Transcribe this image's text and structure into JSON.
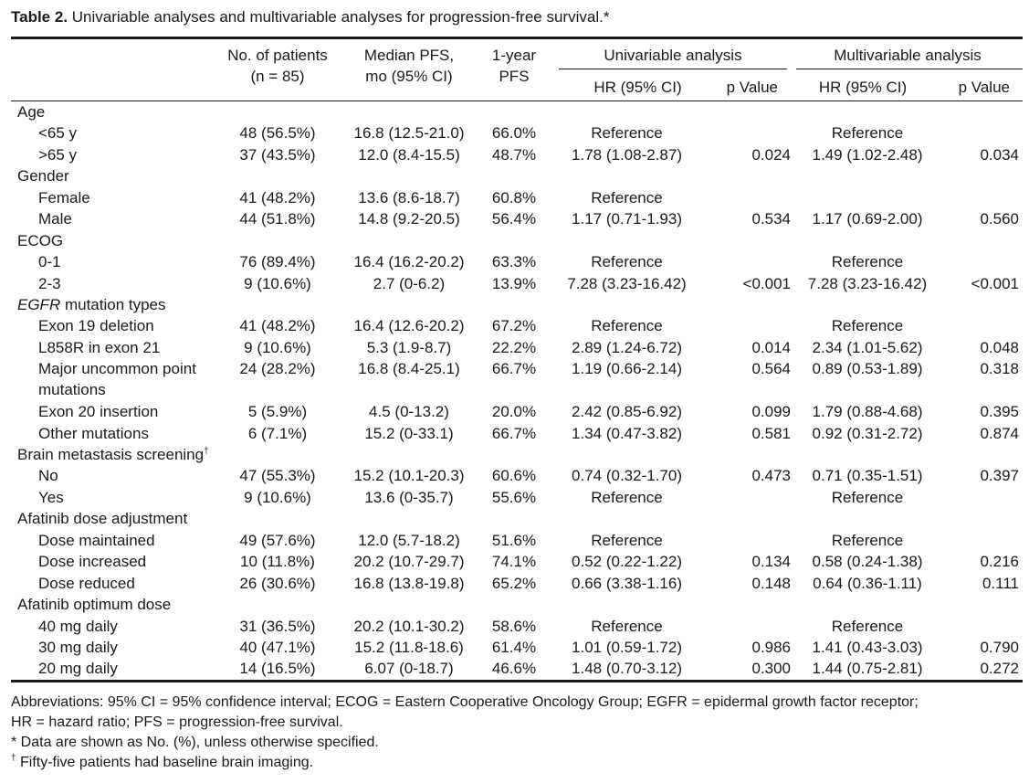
{
  "caption": {
    "label": "Table 2.",
    "text": " Univariable analyses and multivariable analyses for progression-free survival.*"
  },
  "headers": {
    "patients": [
      "No. of patients",
      "(n = 85)"
    ],
    "median": [
      "Median PFS,",
      "mo (95% CI)"
    ],
    "year": [
      "1-year",
      "PFS"
    ],
    "univariable": "Univariable analysis",
    "multivariable": "Multivariable analysis",
    "hr": "HR (95% CI)",
    "p": "p Value"
  },
  "rows": [
    {
      "type": "section",
      "label": "Age"
    },
    {
      "type": "row",
      "label": "<65 y",
      "n": "48 (56.5%)",
      "median": "16.8 (12.5-21.0)",
      "year": "66.0%",
      "uhr": "Reference",
      "up": "",
      "mhr": "Reference",
      "mp": ""
    },
    {
      "type": "row",
      "label": ">65 y",
      "n": "37 (43.5%)",
      "median": "12.0 (8.4-15.5)",
      "year": "48.7%",
      "uhr": "1.78 (1.08-2.87)",
      "up": "0.024",
      "mhr": "1.49 (1.02-2.48)",
      "mp": "0.034"
    },
    {
      "type": "section",
      "label": "Gender"
    },
    {
      "type": "row",
      "label": "Female",
      "n": "41 (48.2%)",
      "median": "13.6 (8.6-18.7)",
      "year": "60.8%",
      "uhr": "Reference",
      "up": "",
      "mhr": "",
      "mp": ""
    },
    {
      "type": "row",
      "label": "Male",
      "n": "44 (51.8%)",
      "median": "14.8 (9.2-20.5)",
      "year": "56.4%",
      "uhr": "1.17 (0.71-1.93)",
      "up": "0.534",
      "mhr": "1.17 (0.69-2.00)",
      "mp": "0.560"
    },
    {
      "type": "section",
      "label": "ECOG"
    },
    {
      "type": "row",
      "label": "0-1",
      "n": "76 (89.4%)",
      "median": "16.4 (16.2-20.2)",
      "year": "63.3%",
      "uhr": "Reference",
      "up": "",
      "mhr": "Reference",
      "mp": ""
    },
    {
      "type": "row",
      "label": "2-3",
      "n": "9 (10.6%)",
      "median": "2.7 (0-6.2)",
      "year": "13.9%",
      "uhr": "7.28 (3.23-16.42)",
      "up": "<0.001",
      "mhr": "7.28 (3.23-16.42)",
      "mp": "<0.001"
    },
    {
      "type": "section",
      "label": "EGFR",
      "label_rest": " mutation types",
      "italic": true
    },
    {
      "type": "row",
      "label": "Exon 19 deletion",
      "n": "41 (48.2%)",
      "median": "16.4 (12.6-20.2)",
      "year": "67.2%",
      "uhr": "Reference",
      "up": "",
      "mhr": "Reference",
      "mp": ""
    },
    {
      "type": "row",
      "label": "L858R in exon 21",
      "n": "9 (10.6%)",
      "median": "5.3 (1.9-8.7)",
      "year": "22.2%",
      "uhr": "2.89 (1.24-6.72)",
      "up": "0.014",
      "mhr": "2.34 (1.01-5.62)",
      "mp": "0.048"
    },
    {
      "type": "row",
      "tall": true,
      "label": "Major uncommon point mutations",
      "n": "24 (28.2%)",
      "median": "16.8 (8.4-25.1)",
      "year": "66.7%",
      "uhr": "1.19 (0.66-2.14)",
      "up": "0.564",
      "mhr": "0.89 (0.53-1.89)",
      "mp": "0.318"
    },
    {
      "type": "row",
      "label": "Exon 20 insertion",
      "n": "5 (5.9%)",
      "median": "4.5 (0-13.2)",
      "year": "20.0%",
      "uhr": "2.42 (0.85-6.92)",
      "up": "0.099",
      "mhr": "1.79 (0.88-4.68)",
      "mp": "0.395"
    },
    {
      "type": "row",
      "label": "Other mutations",
      "n": "6 (7.1%)",
      "median": "15.2 (0-33.1)",
      "year": "66.7%",
      "uhr": "1.34 (0.47-3.82)",
      "up": "0.581",
      "mhr": "0.92 (0.31-2.72)",
      "mp": "0.874"
    },
    {
      "type": "section",
      "label": "Brain metastasis screening",
      "sup": "†"
    },
    {
      "type": "row",
      "label": "No",
      "n": "47 (55.3%)",
      "median": "15.2 (10.1-20.3)",
      "year": "60.6%",
      "uhr": "0.74 (0.32-1.70)",
      "up": "0.473",
      "mhr": "0.71 (0.35-1.51)",
      "mp": "0.397"
    },
    {
      "type": "row",
      "label": "Yes",
      "n": "9 (10.6%)",
      "median": "13.6 (0-35.7)",
      "year": "55.6%",
      "uhr": "Reference",
      "up": "",
      "mhr": "Reference",
      "mp": ""
    },
    {
      "type": "section",
      "label": "Afatinib dose adjustment"
    },
    {
      "type": "row",
      "label": "Dose maintained",
      "n": "49 (57.6%)",
      "median": "12.0 (5.7-18.2)",
      "year": "51.6%",
      "uhr": "Reference",
      "up": "",
      "mhr": "Reference",
      "mp": ""
    },
    {
      "type": "row",
      "label": "Dose increased",
      "n": "10 (11.8%)",
      "median": "20.2 (10.7-29.7)",
      "year": "74.1%",
      "uhr": "0.52 (0.22-1.22)",
      "up": "0.134",
      "mhr": "0.58 (0.24-1.38)",
      "mp": "0.216"
    },
    {
      "type": "row",
      "label": "Dose reduced",
      "n": "26 (30.6%)",
      "median": "16.8 (13.8-19.8)",
      "year": "65.2%",
      "uhr": "0.66 (3.38-1.16)",
      "up": "0.148",
      "mhr": "0.64 (0.36-1.11)",
      "mp": "0.111"
    },
    {
      "type": "section",
      "label": "Afatinib optimum dose"
    },
    {
      "type": "row",
      "label": "40 mg daily",
      "n": "31 (36.5%)",
      "median": "20.2 (10.1-30.2)",
      "year": "58.6%",
      "uhr": "Reference",
      "up": "",
      "mhr": "Reference",
      "mp": ""
    },
    {
      "type": "row",
      "label": "30 mg daily",
      "n": "40 (47.1%)",
      "median": "15.2 (11.8-18.6)",
      "year": "61.4%",
      "uhr": "1.01 (0.59-1.72)",
      "up": "0.986",
      "mhr": "1.41 (0.43-3.03)",
      "mp": "0.790"
    },
    {
      "type": "row",
      "label": "20 mg daily",
      "n": "14 (16.5%)",
      "median": "6.07 (0-18.7)",
      "year": "46.6%",
      "uhr": "1.48 (0.70-3.12)",
      "up": "0.300",
      "mhr": "1.44 (0.75-2.81)",
      "mp": "0.272"
    }
  ],
  "footnotes": {
    "abbrev1": "Abbreviations: 95% CI = 95% confidence interval; ECOG = Eastern Cooperative Oncology Group; EGFR = epidermal growth factor receptor;",
    "abbrev2": "HR = hazard ratio; PFS = progression-free survival.",
    "star": "* Data are shown as No. (%), unless otherwise specified.",
    "dagger_mark": "†",
    "dagger": " Fifty-five patients had baseline brain imaging."
  }
}
